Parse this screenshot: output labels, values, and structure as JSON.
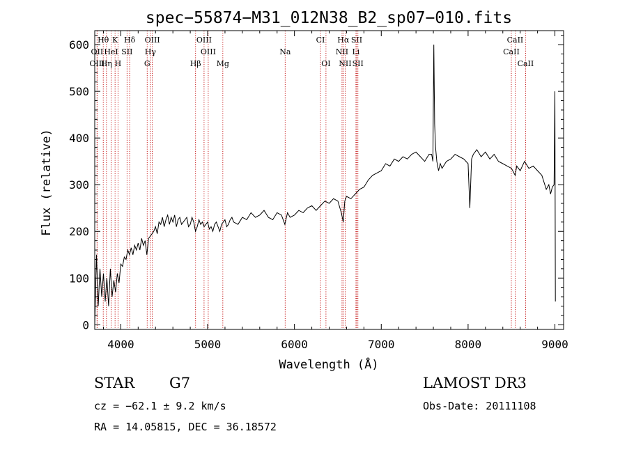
{
  "chart_data": {
    "type": "line",
    "title": "spec−55874−M31_012N38_B2_sp07−010.fits",
    "xlabel": "Wavelength (Å)",
    "ylabel": "Flux (relative)",
    "xlim": [
      3700,
      9100
    ],
    "ylim": [
      -10,
      630
    ],
    "xticks": [
      4000,
      5000,
      6000,
      7000,
      8000,
      9000
    ],
    "yticks": [
      0,
      100,
      200,
      300,
      400,
      500,
      600
    ],
    "grid": false,
    "series": [
      {
        "name": "flux",
        "x": [
          3700,
          3720,
          3740,
          3760,
          3780,
          3800,
          3820,
          3840,
          3860,
          3880,
          3900,
          3920,
          3940,
          3960,
          3980,
          4000,
          4020,
          4040,
          4060,
          4080,
          4100,
          4120,
          4140,
          4160,
          4180,
          4200,
          4220,
          4240,
          4260,
          4280,
          4300,
          4320,
          4340,
          4360,
          4380,
          4400,
          4420,
          4440,
          4460,
          4480,
          4500,
          4520,
          4540,
          4560,
          4580,
          4600,
          4620,
          4640,
          4660,
          4680,
          4700,
          4720,
          4740,
          4760,
          4780,
          4800,
          4820,
          4840,
          4860,
          4880,
          4900,
          4920,
          4940,
          4960,
          4980,
          5000,
          5020,
          5040,
          5060,
          5080,
          5100,
          5120,
          5140,
          5160,
          5180,
          5200,
          5220,
          5240,
          5260,
          5280,
          5300,
          5350,
          5400,
          5450,
          5500,
          5550,
          5600,
          5650,
          5700,
          5750,
          5800,
          5850,
          5890,
          5920,
          5950,
          6000,
          6050,
          6100,
          6150,
          6200,
          6250,
          6300,
          6350,
          6400,
          6450,
          6500,
          6540,
          6562,
          6580,
          6600,
          6650,
          6700,
          6750,
          6800,
          6850,
          6900,
          6950,
          7000,
          7050,
          7100,
          7150,
          7200,
          7250,
          7300,
          7350,
          7400,
          7450,
          7500,
          7550,
          7580,
          7595,
          7605,
          7615,
          7625,
          7640,
          7660,
          7680,
          7700,
          7750,
          7800,
          7850,
          7900,
          7950,
          8000,
          8020,
          8040,
          8060,
          8100,
          8150,
          8200,
          8250,
          8300,
          8350,
          8400,
          8450,
          8500,
          8542,
          8560,
          8600,
          8650,
          8700,
          8750,
          8800,
          8850,
          8900,
          8930,
          8950,
          8970,
          8990,
          9000,
          9005
        ],
        "values": [
          0,
          150,
          40,
          120,
          60,
          110,
          50,
          100,
          40,
          120,
          60,
          95,
          70,
          110,
          90,
          130,
          125,
          145,
          140,
          160,
          150,
          165,
          150,
          170,
          160,
          175,
          160,
          185,
          170,
          180,
          150,
          185,
          190,
          195,
          200,
          210,
          195,
          220,
          215,
          230,
          210,
          225,
          235,
          215,
          230,
          220,
          235,
          210,
          225,
          230,
          215,
          220,
          225,
          230,
          210,
          215,
          230,
          220,
          200,
          210,
          225,
          215,
          220,
          210,
          215,
          220,
          205,
          210,
          200,
          215,
          220,
          210,
          200,
          215,
          220,
          225,
          210,
          215,
          225,
          230,
          220,
          215,
          230,
          225,
          240,
          230,
          235,
          245,
          230,
          225,
          240,
          235,
          215,
          240,
          230,
          235,
          245,
          240,
          250,
          255,
          245,
          255,
          265,
          260,
          270,
          265,
          240,
          220,
          265,
          275,
          270,
          280,
          290,
          295,
          310,
          320,
          325,
          330,
          345,
          340,
          355,
          350,
          360,
          355,
          365,
          370,
          360,
          350,
          365,
          365,
          350,
          600,
          430,
          380,
          350,
          330,
          345,
          335,
          350,
          355,
          365,
          360,
          355,
          345,
          250,
          355,
          365,
          375,
          360,
          370,
          355,
          365,
          350,
          345,
          340,
          335,
          320,
          340,
          330,
          350,
          335,
          340,
          330,
          320,
          290,
          300,
          280,
          295,
          300,
          500,
          50
        ]
      }
    ],
    "lines": [
      {
        "name": "Hθ",
        "wave": 3798,
        "row": 0
      },
      {
        "name": "K",
        "wave": 3934,
        "row": 0
      },
      {
        "name": "Hδ",
        "wave": 4102,
        "row": 0
      },
      {
        "name": "OIII",
        "wave": 4363,
        "row": 0
      },
      {
        "name": "OIII",
        "wave": 4959,
        "row": 0
      },
      {
        "name": "CI",
        "wave": 6300,
        "row": 0
      },
      {
        "name": "Hα",
        "wave": 6563,
        "row": 0
      },
      {
        "name": "SII",
        "wave": 6717,
        "row": 0
      },
      {
        "name": "CaII",
        "wave": 8542,
        "row": 0
      },
      {
        "name": "OII",
        "wave": 3727,
        "row": 1
      },
      {
        "name": "HeI",
        "wave": 3889,
        "row": 1
      },
      {
        "name": "SII",
        "wave": 4072,
        "row": 1
      },
      {
        "name": "Hγ",
        "wave": 4341,
        "row": 1
      },
      {
        "name": "OIII",
        "wave": 5007,
        "row": 1
      },
      {
        "name": "Na",
        "wave": 5893,
        "row": 1
      },
      {
        "name": "NII",
        "wave": 6548,
        "row": 1
      },
      {
        "name": "Li",
        "wave": 6708,
        "row": 1
      },
      {
        "name": "CaII",
        "wave": 8498,
        "row": 1
      },
      {
        "name": "OIII",
        "wave": 3727,
        "row": 2
      },
      {
        "name": "Hη",
        "wave": 3835,
        "row": 2
      },
      {
        "name": "H",
        "wave": 3968,
        "row": 2
      },
      {
        "name": "G",
        "wave": 4304,
        "row": 2
      },
      {
        "name": "Hβ",
        "wave": 4861,
        "row": 2
      },
      {
        "name": "Mg",
        "wave": 5175,
        "row": 2
      },
      {
        "name": "OI",
        "wave": 6363,
        "row": 2
      },
      {
        "name": "NII",
        "wave": 6584,
        "row": 2
      },
      {
        "name": "SII",
        "wave": 6731,
        "row": 2
      },
      {
        "name": "CaII",
        "wave": 8662,
        "row": 2
      }
    ]
  },
  "info": {
    "class": "STAR",
    "subclass": "G7",
    "survey": "LAMOST DR3",
    "cz": "cz = −62.1 ± 9.2 km/s",
    "obs_date": "Obs-Date: 20111108",
    "radec": "RA =  14.05815, DEC =  36.18572"
  }
}
